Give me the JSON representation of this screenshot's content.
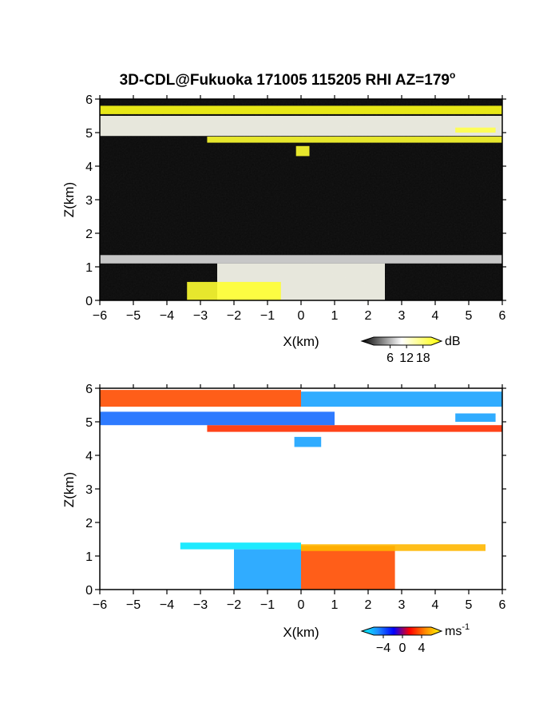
{
  "title": "3D-CDL@Fukuoka 171005 115205 RHI AZ=179",
  "title_degree": "o",
  "chart_data": [
    {
      "type": "heatmap",
      "quantity": "backscatter intensity",
      "xlabel": "X(km)",
      "ylabel": "Z(km)",
      "xlim": [
        -6,
        6
      ],
      "ylim": [
        0,
        6
      ],
      "x_ticks": [
        "-6",
        "-5",
        "-4",
        "-3",
        "-2",
        "-1",
        "0",
        "1",
        "2",
        "3",
        "4",
        "5",
        "6"
      ],
      "y_ticks": [
        "0",
        "1",
        "2",
        "3",
        "4",
        "5",
        "6"
      ],
      "colorbar": {
        "unit": "dB",
        "ticks": [
          "6",
          "12",
          "18"
        ],
        "tick_values": [
          6,
          12,
          18
        ],
        "range": [
          0,
          21
        ],
        "colors": [
          "#000000",
          "#ffffff",
          "#ffff00"
        ]
      },
      "features": [
        {
          "feature": "cloud layer",
          "x_range": [
            -6,
            6
          ],
          "z_range": [
            5.55,
            5.8
          ],
          "value_db": 20
        },
        {
          "feature": "cloud layer",
          "x_range": [
            -2.8,
            6
          ],
          "z_range": [
            4.7,
            4.88
          ],
          "value_db": 19
        },
        {
          "feature": "cloud fragment",
          "x_range": [
            -6,
            6
          ],
          "z_range": [
            4.9,
            5.5
          ],
          "value_db": 11
        },
        {
          "feature": "cloud fragment",
          "x_range": [
            4.6,
            5.8
          ],
          "z_range": [
            5.0,
            5.15
          ],
          "value_db": 18
        },
        {
          "feature": "cloud blob",
          "x_range": [
            -0.15,
            0.25
          ],
          "z_range": [
            4.3,
            4.6
          ],
          "value_db": 19
        },
        {
          "feature": "aerosol layer",
          "x_range": [
            -6,
            6
          ],
          "z_range": [
            1.1,
            1.35
          ],
          "value_db": 9
        },
        {
          "feature": "boundary layer",
          "x_range": [
            -2.5,
            2.5
          ],
          "z_range": [
            0,
            1.1
          ],
          "value_db": 11
        },
        {
          "feature": "ground clutter",
          "x_range": [
            -3.4,
            -0.6
          ],
          "z_range": [
            0,
            0.55
          ],
          "value_db": 19
        }
      ]
    },
    {
      "type": "heatmap",
      "quantity": "Doppler velocity",
      "xlabel": "X(km)",
      "ylabel": "Z(km)",
      "xlim": [
        -6,
        6
      ],
      "ylim": [
        0,
        6
      ],
      "x_ticks": [
        "-6",
        "-5",
        "-4",
        "-3",
        "-2",
        "-1",
        "0",
        "1",
        "2",
        "3",
        "4",
        "5",
        "6"
      ],
      "y_ticks": [
        "0",
        "1",
        "2",
        "3",
        "4",
        "5",
        "6"
      ],
      "colorbar": {
        "unit": "ms",
        "unit_exponent": "-1",
        "ticks": [
          "-4",
          "0",
          "4"
        ],
        "tick_values": [
          -4,
          0,
          4
        ],
        "range": [
          -6,
          6
        ],
        "colors": [
          "#00ffff",
          "#1e90ff",
          "#0000ff",
          "#ff0000",
          "#ff8c00",
          "#ffff00"
        ]
      },
      "features": [
        {
          "feature": "upper layer",
          "x_range": [
            -6,
            0
          ],
          "z_range": [
            5.45,
            5.95
          ],
          "velocity": 2.5
        },
        {
          "feature": "upper layer",
          "x_range": [
            0,
            6
          ],
          "z_range": [
            5.45,
            5.9
          ],
          "velocity": -4
        },
        {
          "feature": "middle layer",
          "x_range": [
            -2.8,
            6
          ],
          "z_range": [
            4.7,
            4.9
          ],
          "velocity": 2
        },
        {
          "feature": "fragments",
          "x_range": [
            -6,
            1
          ],
          "z_range": [
            4.9,
            5.3
          ],
          "velocity": -3
        },
        {
          "feature": "fragments",
          "x_range": [
            4.6,
            5.8
          ],
          "z_range": [
            5.0,
            5.25
          ],
          "velocity": -4
        },
        {
          "feature": "cloud blob",
          "x_range": [
            -0.2,
            0.6
          ],
          "z_range": [
            4.25,
            4.55
          ],
          "velocity": -4
        },
        {
          "feature": "boundary layer",
          "x_range": [
            -2,
            0
          ],
          "z_range": [
            0,
            1.2
          ],
          "velocity": -4
        },
        {
          "feature": "boundary layer",
          "x_range": [
            0,
            2.8
          ],
          "z_range": [
            0,
            1.3
          ],
          "velocity": 2.5
        },
        {
          "feature": "aerosol top",
          "x_range": [
            -3.6,
            0
          ],
          "z_range": [
            1.2,
            1.4
          ],
          "velocity": -5.5
        },
        {
          "feature": "aerosol top",
          "x_range": [
            0,
            5.5
          ],
          "z_range": [
            1.15,
            1.35
          ],
          "velocity": 4.5
        }
      ]
    }
  ]
}
